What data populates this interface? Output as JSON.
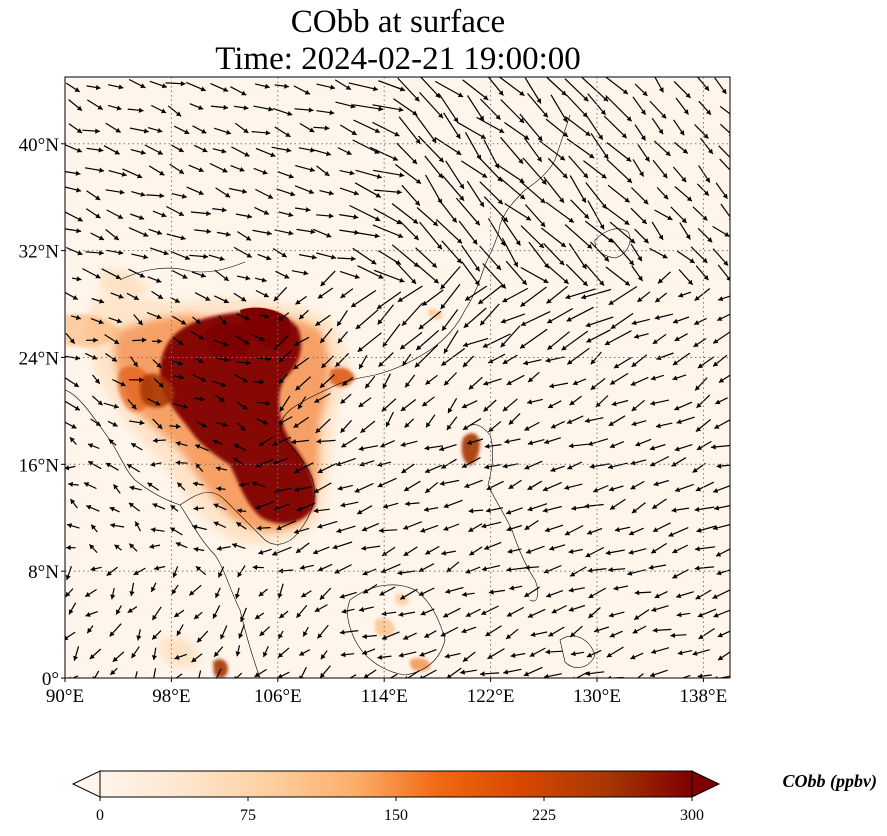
{
  "title": {
    "line1": "CObb at surface",
    "line2": "Time: 2024-02-21 19:00:00"
  },
  "map": {
    "lon_range": [
      90,
      140
    ],
    "lat_range": [
      0,
      45
    ],
    "lon_ticks": [
      {
        "value": 90,
        "label": "90°E"
      },
      {
        "value": 98,
        "label": "98°E"
      },
      {
        "value": 106,
        "label": "106°E"
      },
      {
        "value": 114,
        "label": "114°E"
      },
      {
        "value": 122,
        "label": "122°E"
      },
      {
        "value": 130,
        "label": "130°E"
      },
      {
        "value": 138,
        "label": "138°E"
      }
    ],
    "lat_ticks": [
      {
        "value": 0,
        "label": "0°"
      },
      {
        "value": 8,
        "label": "8°N"
      },
      {
        "value": 16,
        "label": "16°N"
      },
      {
        "value": 24,
        "label": "24°N"
      },
      {
        "value": 32,
        "label": "32°N"
      },
      {
        "value": 40,
        "label": "40°N"
      }
    ],
    "gridlines": "dotted",
    "wind_vectors": "shown",
    "background_color": "#fff5eb",
    "plumes": [
      {
        "region": "Indochina / southern China",
        "lon": [
          98,
          109
        ],
        "lat": [
          11,
          28
        ],
        "level": "high"
      },
      {
        "region": "Myanmar",
        "lon": [
          90,
          98
        ],
        "lat": [
          18,
          28
        ],
        "level": "moderate"
      },
      {
        "region": "Luzon",
        "lon": [
          119.5,
          121
        ],
        "lat": [
          16,
          18.5
        ],
        "level": "high"
      },
      {
        "region": "Sumatra",
        "lon": [
          101,
          102
        ],
        "lat": [
          0,
          1
        ],
        "level": "high"
      },
      {
        "region": "Borneo",
        "lon": [
          114,
          118
        ],
        "lat": [
          0,
          6
        ],
        "level": "low"
      }
    ]
  },
  "colorbar": {
    "min": 0,
    "max": 300,
    "ticks": [
      {
        "value": 0,
        "label": "0"
      },
      {
        "value": 75,
        "label": "75"
      },
      {
        "value": 150,
        "label": "150"
      },
      {
        "value": 225,
        "label": "225"
      },
      {
        "value": 300,
        "label": "300"
      }
    ],
    "label": "CObb (ppbv)",
    "colormap": [
      "#fff5eb",
      "#fee6ce",
      "#fdd0a2",
      "#fdae6b",
      "#f16913",
      "#d94801",
      "#a63603",
      "#7f0000"
    ],
    "extend": "both"
  }
}
